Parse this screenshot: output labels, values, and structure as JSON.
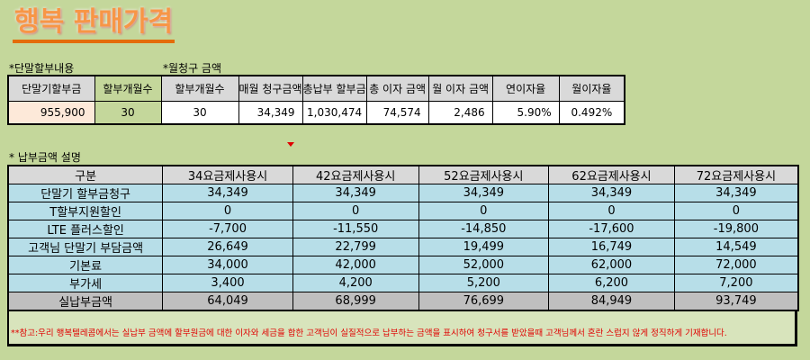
{
  "title": "행복 판매가격",
  "section1": {
    "label": "*단말할부내용",
    "headers": [
      "단말기할부금",
      "할부개월수"
    ],
    "values": [
      "955,900",
      "30"
    ]
  },
  "section2": {
    "label": "*월청구 금액",
    "headers": [
      "할부개월수",
      "매월 청구금액",
      "총납부 할부금",
      "총 이자 금액",
      "월 이자 금액",
      "연이자율",
      "월이자율"
    ],
    "values": [
      "30",
      "34,349",
      "1,030,474",
      "74,574",
      "2,486",
      "5.90%",
      "0.492%"
    ]
  },
  "section3": {
    "label": "* 납부금액 설명",
    "headers": [
      "구분",
      "34요금제사용시",
      "42요금제사용시",
      "52요금제사용시",
      "62요금제사용시",
      "72요금제사용시"
    ],
    "rows": [
      [
        "단말기 할부금청구",
        "34,349",
        "34,349",
        "34,349",
        "34,349",
        "34,349"
      ],
      [
        "T할부지원할인",
        "0",
        "0",
        "0",
        "0",
        "0"
      ],
      [
        "LTE 플러스할인",
        "-7,700",
        "-11,550",
        "-14,850",
        "-17,600",
        "-19,800"
      ],
      [
        "고객님 단말기 부담금액",
        "26,649",
        "22,799",
        "19,499",
        "16,749",
        "14,549"
      ],
      [
        "기본료",
        "34,000",
        "42,000",
        "52,000",
        "62,000",
        "72,000"
      ],
      [
        "부가세",
        "3,400",
        "4,200",
        "5,200",
        "6,200",
        "7,200"
      ],
      [
        "실납부금액",
        "64,049",
        "68,999",
        "76,699",
        "84,949",
        "93,749"
      ]
    ]
  },
  "note": "**참고:우리 행복텔레콤에서는 실납부 금액에 할부원금에 대한 이자와 세금을 합한 고객님이 실질적으로 납부하는 금액을 표시하여 청구서를 받았을때 고객님께서 혼란 스럽지 않게 정직하게 기재합니다."
}
